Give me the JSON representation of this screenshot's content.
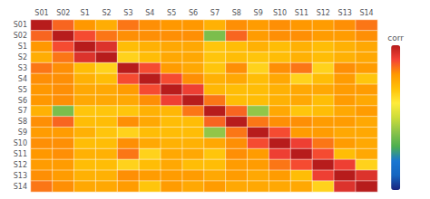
{
  "chart_data": {
    "type": "heatmap",
    "categories": [
      "S01",
      "S02",
      "S1",
      "S2",
      "S3",
      "S4",
      "S5",
      "S6",
      "S7",
      "S8",
      "S9",
      "S10",
      "S11",
      "S12",
      "S13",
      "S14"
    ],
    "cells": [
      [
        1.0,
        0.72,
        0.6,
        0.5,
        0.68,
        0.62,
        0.6,
        0.6,
        0.48,
        0.62,
        0.58,
        0.62,
        0.6,
        0.58,
        0.62,
        0.68
      ],
      [
        0.72,
        1.0,
        0.78,
        0.68,
        0.62,
        0.62,
        0.62,
        0.62,
        -0.25,
        0.72,
        0.58,
        0.62,
        0.62,
        0.58,
        0.58,
        0.62
      ],
      [
        0.6,
        0.78,
        1.0,
        0.88,
        0.42,
        0.48,
        0.52,
        0.52,
        0.38,
        0.42,
        0.48,
        0.42,
        0.48,
        0.42,
        0.48,
        0.52
      ],
      [
        0.5,
        0.68,
        0.88,
        1.0,
        0.32,
        0.42,
        0.52,
        0.52,
        0.38,
        0.42,
        0.38,
        0.42,
        0.48,
        0.42,
        0.48,
        0.52
      ],
      [
        0.68,
        0.62,
        0.42,
        0.32,
        1.0,
        0.78,
        0.58,
        0.52,
        0.38,
        0.62,
        0.32,
        0.62,
        0.68,
        0.32,
        0.62,
        0.58
      ],
      [
        0.62,
        0.62,
        0.48,
        0.42,
        0.78,
        1.0,
        0.78,
        0.62,
        0.48,
        0.52,
        0.42,
        0.52,
        0.32,
        0.42,
        0.58,
        0.38
      ],
      [
        0.6,
        0.62,
        0.52,
        0.52,
        0.58,
        0.78,
        1.0,
        0.82,
        0.45,
        0.42,
        0.42,
        0.48,
        0.52,
        0.52,
        0.58,
        0.58
      ],
      [
        0.6,
        0.62,
        0.52,
        0.52,
        0.52,
        0.62,
        0.82,
        1.0,
        0.68,
        0.42,
        0.42,
        0.48,
        0.52,
        0.42,
        0.58,
        0.52
      ],
      [
        0.48,
        -0.25,
        0.38,
        0.38,
        0.38,
        0.48,
        0.45,
        0.68,
        1.0,
        0.72,
        -0.18,
        0.52,
        0.38,
        0.42,
        0.52,
        0.58
      ],
      [
        0.62,
        0.72,
        0.42,
        0.42,
        0.62,
        0.52,
        0.42,
        0.42,
        0.72,
        1.0,
        0.68,
        0.62,
        0.62,
        0.58,
        0.58,
        0.52
      ],
      [
        0.58,
        0.58,
        0.48,
        0.38,
        0.32,
        0.42,
        0.42,
        0.42,
        -0.18,
        0.68,
        1.0,
        0.78,
        0.58,
        0.58,
        0.52,
        0.52
      ],
      [
        0.62,
        0.62,
        0.42,
        0.42,
        0.62,
        0.52,
        0.48,
        0.48,
        0.52,
        0.62,
        0.78,
        1.0,
        0.82,
        0.68,
        0.58,
        0.52
      ],
      [
        0.6,
        0.62,
        0.48,
        0.48,
        0.68,
        0.32,
        0.52,
        0.52,
        0.38,
        0.62,
        0.58,
        0.82,
        1.0,
        0.78,
        0.42,
        0.52
      ],
      [
        0.58,
        0.58,
        0.42,
        0.42,
        0.32,
        0.42,
        0.52,
        0.42,
        0.42,
        0.58,
        0.58,
        0.68,
        0.78,
        1.0,
        0.82,
        0.32
      ],
      [
        0.62,
        0.58,
        0.48,
        0.48,
        0.62,
        0.58,
        0.58,
        0.58,
        0.52,
        0.58,
        0.52,
        0.58,
        0.42,
        0.82,
        1.0,
        0.88
      ],
      [
        0.68,
        0.62,
        0.52,
        0.52,
        0.58,
        0.38,
        0.58,
        0.52,
        0.58,
        0.52,
        0.52,
        0.52,
        0.52,
        0.32,
        0.88,
        1.0
      ]
    ],
    "colorbar": {
      "label": "corr",
      "range": [
        -1.0,
        1.0
      ],
      "ticks": []
    },
    "colors": [
      "#1a237e",
      "#1565c0",
      "#1976d2",
      "#4caf50",
      "#8bc34a",
      "#cddc39",
      "#ffeb3b",
      "#ffc107",
      "#ff9800",
      "#f44336",
      "#b71c1c"
    ]
  }
}
